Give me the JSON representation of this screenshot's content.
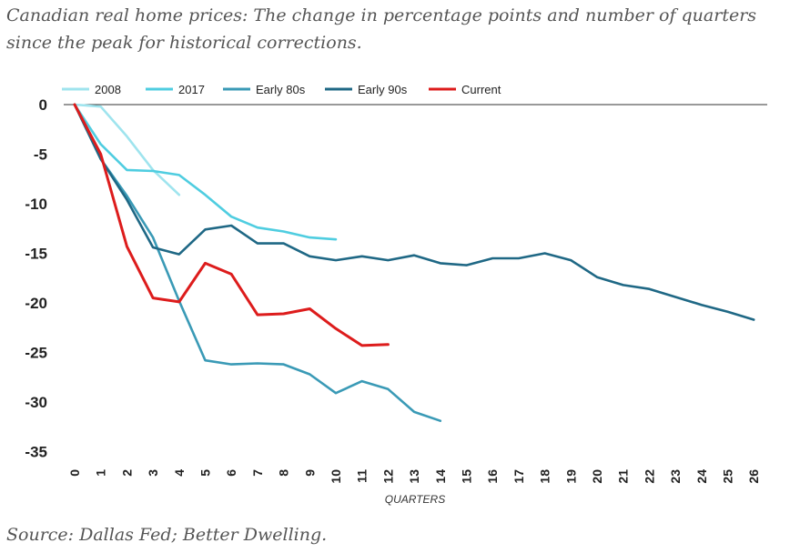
{
  "page": {
    "title": "Canadian real home prices: The change in percentage points and number of quarters since the peak for historical corrections.",
    "source": "Source: Dallas Fed; Better Dwelling."
  },
  "chart_data": {
    "type": "line",
    "title": "Canadian real home prices: The change in percentage points and number of quarters since the peak for historical corrections.",
    "xlabel": "QUARTERS",
    "ylabel": "",
    "xlim": [
      0,
      26
    ],
    "ylim": [
      -35,
      0
    ],
    "x_ticks": [
      0,
      1,
      2,
      3,
      4,
      5,
      6,
      7,
      8,
      9,
      10,
      11,
      12,
      13,
      14,
      15,
      16,
      17,
      18,
      19,
      20,
      21,
      22,
      23,
      24,
      25,
      26
    ],
    "y_ticks": [
      0,
      -5,
      -10,
      -15,
      -20,
      -25,
      -30,
      -35
    ],
    "grid": false,
    "legend_position": "top",
    "series": [
      {
        "name": "2008",
        "color": "#9fe4ee",
        "x": [
          0,
          1,
          2,
          3,
          4
        ],
        "values": [
          0,
          -0.2,
          -3.2,
          -6.6,
          -9.1
        ]
      },
      {
        "name": "2017",
        "color": "#4fcde0",
        "x": [
          0,
          1,
          2,
          3,
          4,
          5,
          6,
          7,
          8,
          9,
          10
        ],
        "values": [
          0,
          -4,
          -6.6,
          -6.7,
          -7.1,
          -9.1,
          -11.3,
          -12.4,
          -12.8,
          -13.4,
          -13.6
        ]
      },
      {
        "name": "Early 80s",
        "color": "#3a9ab6",
        "x": [
          0,
          1,
          2,
          3,
          4,
          5,
          6,
          7,
          8,
          9,
          10,
          11,
          12,
          13,
          14
        ],
        "values": [
          0,
          -5.5,
          -9.2,
          -13.4,
          -19.8,
          -25.8,
          -26.2,
          -26.1,
          -26.2,
          -27.2,
          -29.1,
          -27.9,
          -28.7,
          -31,
          -31.9
        ]
      },
      {
        "name": "Early 90s",
        "color": "#1f6885",
        "x": [
          0,
          1,
          2,
          3,
          4,
          5,
          6,
          7,
          8,
          9,
          10,
          11,
          12,
          13,
          14,
          15,
          16,
          17,
          18,
          19,
          20,
          21,
          22,
          23,
          24,
          25,
          26
        ],
        "values": [
          0,
          -5.5,
          -9.6,
          -14.4,
          -15.1,
          -12.6,
          -12.2,
          -14,
          -14,
          -15.3,
          -15.7,
          -15.3,
          -15.7,
          -15.2,
          -16,
          -16.2,
          -15.5,
          -15.5,
          -15,
          -15.7,
          -17.4,
          -18.2,
          -18.6,
          -19.4,
          -20.2,
          -20.9,
          -21.7
        ]
      },
      {
        "name": "Current",
        "color": "#dd1c1c",
        "x": [
          0,
          1,
          2,
          3,
          4,
          5,
          6,
          7,
          8,
          9,
          10,
          11,
          12
        ],
        "values": [
          0,
          -5,
          -14.3,
          -19.5,
          -19.9,
          -16,
          -17.1,
          -21.2,
          -21.1,
          -20.6,
          -22.6,
          -24.3,
          -24.2
        ]
      }
    ]
  }
}
